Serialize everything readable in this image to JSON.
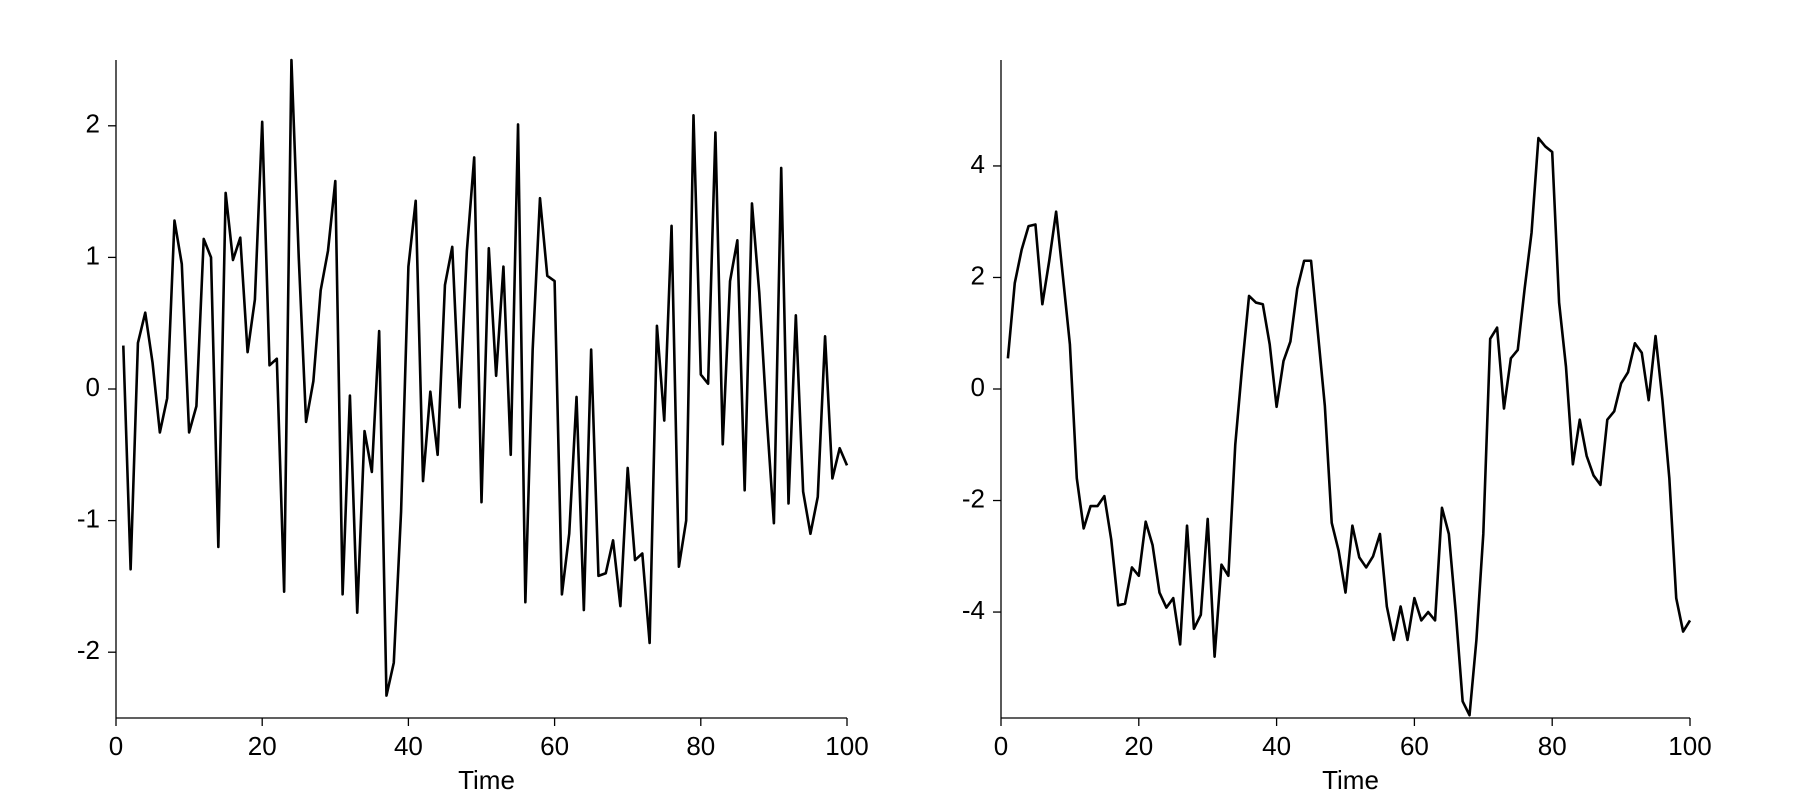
{
  "chart_data": [
    {
      "type": "line",
      "xlabel": "Time",
      "color": "#000000",
      "x": [
        1,
        2,
        3,
        4,
        5,
        6,
        7,
        8,
        9,
        10,
        11,
        12,
        13,
        14,
        15,
        16,
        17,
        18,
        19,
        20,
        21,
        22,
        23,
        24,
        25,
        26,
        27,
        28,
        29,
        30,
        31,
        32,
        33,
        34,
        35,
        36,
        37,
        38,
        39,
        40,
        41,
        42,
        43,
        44,
        45,
        46,
        47,
        48,
        49,
        50,
        51,
        52,
        53,
        54,
        55,
        56,
        57,
        58,
        59,
        60,
        61,
        62,
        63,
        64,
        65,
        66,
        67,
        68,
        69,
        70,
        71,
        72,
        73,
        74,
        75,
        76,
        77,
        78,
        79,
        80,
        81,
        82,
        83,
        84,
        85,
        86,
        87,
        88,
        89,
        90,
        91,
        92,
        93,
        94,
        95,
        96,
        97,
        98,
        99,
        100
      ],
      "values": [
        0.33,
        -1.37,
        0.35,
        0.58,
        0.2,
        -0.33,
        -0.07,
        1.28,
        0.95,
        -0.33,
        -0.13,
        1.14,
        1.0,
        -1.2,
        1.49,
        0.98,
        1.15,
        0.28,
        0.68,
        2.03,
        0.18,
        0.23,
        -1.54,
        2.5,
        1.0,
        -0.25,
        0.06,
        0.75,
        1.05,
        1.58,
        -1.56,
        -0.05,
        -1.7,
        -0.32,
        -0.63,
        0.44,
        -2.33,
        -2.08,
        -0.93,
        0.93,
        1.43,
        -0.7,
        -0.02,
        -0.5,
        0.79,
        1.08,
        -0.14,
        1.05,
        1.76,
        -0.86,
        1.07,
        0.1,
        0.93,
        -0.5,
        2.01,
        -1.62,
        0.3,
        1.45,
        0.86,
        0.82,
        -1.56,
        -1.1,
        -0.06,
        -1.68,
        0.3,
        -1.42,
        -1.4,
        -1.15,
        -1.65,
        -0.6,
        -1.3,
        -1.25,
        -1.93,
        0.48,
        -0.24,
        1.24,
        -1.35,
        -1.0,
        2.08,
        0.11,
        0.04,
        1.95,
        -0.42,
        0.82,
        1.13,
        -0.77,
        1.41,
        0.73,
        -0.2,
        -1.02,
        1.68,
        -0.87,
        0.56,
        -0.78,
        -1.1,
        -0.82,
        0.4,
        -0.68,
        -0.45,
        -0.58
      ],
      "xlim": [
        0,
        100
      ],
      "xticks": [
        0,
        20,
        40,
        60,
        80,
        100
      ],
      "ylim": [
        -2.5,
        2.5
      ],
      "yticks": [
        -2,
        -1,
        0,
        1,
        2
      ]
    },
    {
      "type": "line",
      "xlabel": "Time",
      "color": "#000000",
      "x": [
        1,
        2,
        3,
        4,
        5,
        6,
        7,
        8,
        9,
        10,
        11,
        12,
        13,
        14,
        15,
        16,
        17,
        18,
        19,
        20,
        21,
        22,
        23,
        24,
        25,
        26,
        27,
        28,
        29,
        30,
        31,
        32,
        33,
        34,
        35,
        36,
        37,
        38,
        39,
        40,
        41,
        42,
        43,
        44,
        45,
        46,
        47,
        48,
        49,
        50,
        51,
        52,
        53,
        54,
        55,
        56,
        57,
        58,
        59,
        60,
        61,
        62,
        63,
        64,
        65,
        66,
        67,
        68,
        69,
        70,
        71,
        72,
        73,
        74,
        75,
        76,
        77,
        78,
        79,
        80,
        81,
        82,
        83,
        84,
        85,
        86,
        87,
        88,
        89,
        90,
        91,
        92,
        93,
        94,
        95,
        96,
        97,
        98,
        99,
        100
      ],
      "values": [
        0.55,
        1.9,
        2.5,
        2.92,
        2.95,
        1.52,
        2.3,
        3.18,
        2.0,
        0.8,
        -1.6,
        -2.5,
        -2.1,
        -2.1,
        -1.92,
        -2.7,
        -3.88,
        -3.85,
        -3.2,
        -3.35,
        -2.38,
        -2.8,
        -3.65,
        -3.92,
        -3.75,
        -4.58,
        -2.45,
        -4.3,
        -4.05,
        -2.33,
        -4.8,
        -3.15,
        -3.35,
        -1.0,
        0.4,
        1.67,
        1.55,
        1.52,
        0.8,
        -0.32,
        0.5,
        0.85,
        1.8,
        2.3,
        2.3,
        1.0,
        -0.3,
        -2.4,
        -2.9,
        -3.65,
        -2.45,
        -3.02,
        -3.2,
        -3.0,
        -2.6,
        -3.9,
        -4.5,
        -3.9,
        -4.5,
        -3.75,
        -4.15,
        -4.0,
        -4.15,
        -2.13,
        -2.6,
        -4.0,
        -5.6,
        -5.85,
        -4.5,
        -2.6,
        0.9,
        1.1,
        -0.35,
        0.55,
        0.7,
        1.8,
        2.8,
        4.5,
        4.35,
        4.25,
        1.55,
        0.4,
        -1.35,
        -0.55,
        -1.2,
        -1.55,
        -1.72,
        -0.55,
        -0.4,
        0.1,
        0.3,
        0.82,
        0.65,
        -0.2,
        0.95,
        -0.2,
        -1.6,
        -3.75,
        -4.35,
        -4.15
      ],
      "xlim": [
        0,
        100
      ],
      "xticks": [
        0,
        20,
        40,
        60,
        80,
        100
      ],
      "ylim": [
        -5.9,
        5.9
      ],
      "yticks": [
        -4,
        -2,
        0,
        2,
        4
      ]
    }
  ]
}
